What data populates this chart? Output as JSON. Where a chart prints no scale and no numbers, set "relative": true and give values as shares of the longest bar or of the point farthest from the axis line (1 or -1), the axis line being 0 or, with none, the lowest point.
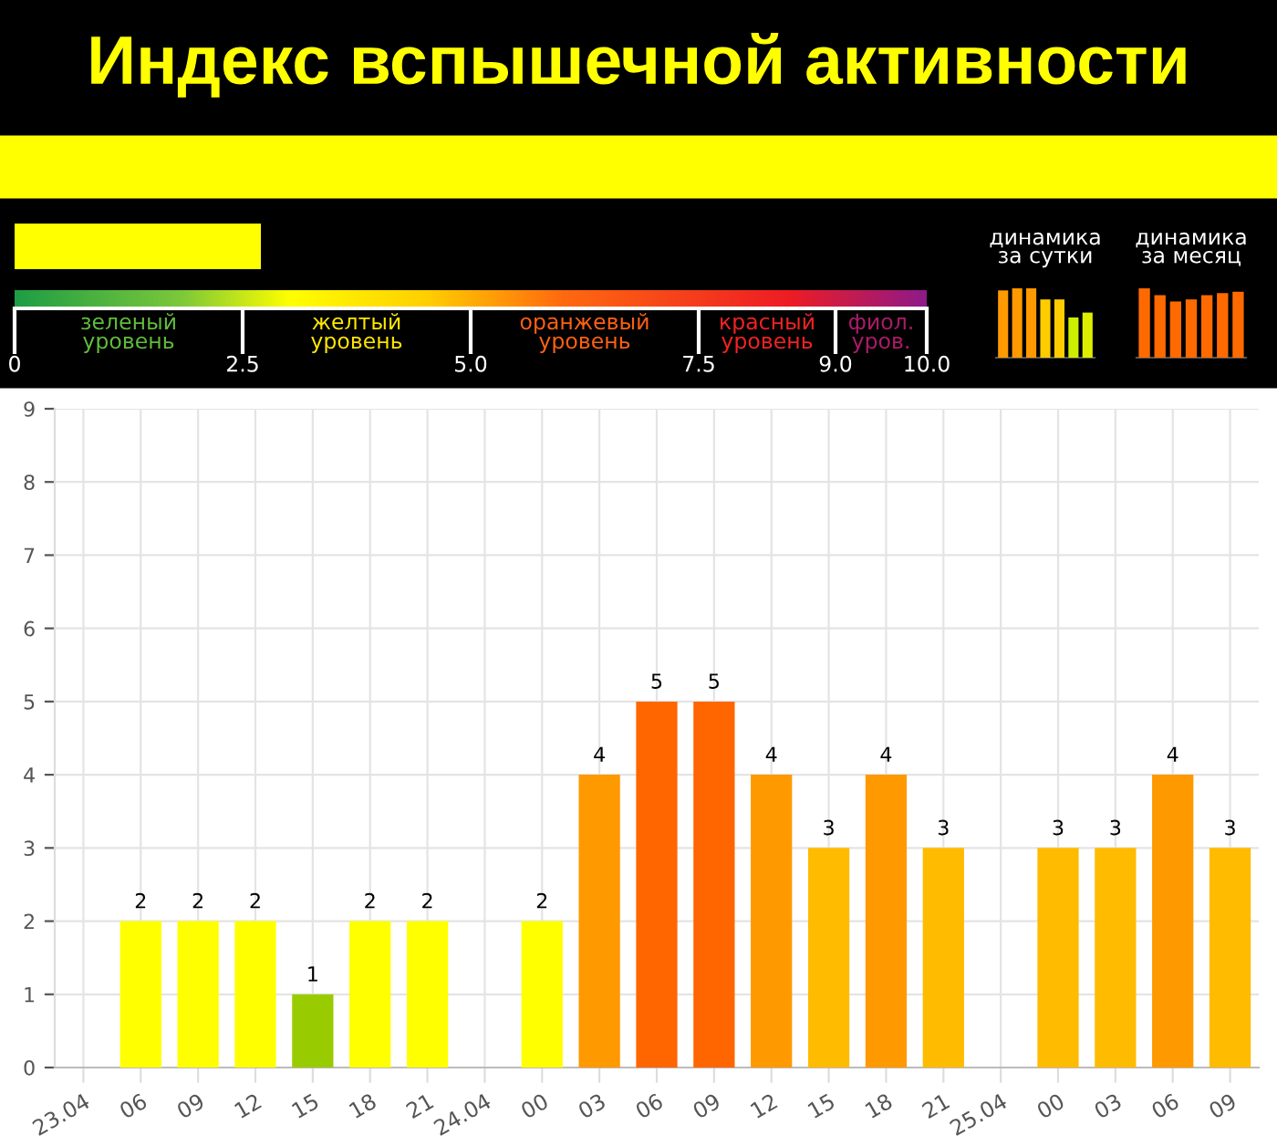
{
  "chart_data": [
    {
      "type": "bar",
      "orientation": "horizontal",
      "title": "Индекс вспышечной активности",
      "categories": [
        null
      ],
      "values": [
        2.7
      ],
      "color": "#ffff00",
      "xlim": [
        0,
        10
      ],
      "xticks": [
        {
          "value": 0,
          "label": "0"
        },
        {
          "value": 2.5,
          "label": "2.5"
        },
        {
          "value": 5.0,
          "label": "5.0"
        },
        {
          "value": 7.5,
          "label": "7.5"
        },
        {
          "value": 9.0,
          "label": "9.0"
        },
        {
          "value": 10.0,
          "label": "10.0"
        }
      ],
      "annotations": [
        "зеленый\nуровень",
        "желтый\nуровень",
        "оранжевый\nуровень",
        "красный\nуровень",
        "фиол.\nуров."
      ]
    },
    {
      "type": "bar",
      "title": "динамика\nза сутки",
      "relative": true,
      "categories": [
        null,
        null,
        null,
        null,
        null,
        null,
        null
      ],
      "values": [
        0.97,
        1,
        1,
        0.84,
        0.84,
        0.58,
        0.65
      ],
      "colors": [
        "#ff9900",
        "#ff9900",
        "#ff9900",
        "#ffcc00",
        "#ffcc00",
        "#ccee00",
        "#ddee00"
      ]
    },
    {
      "type": "bar",
      "title": "динамика\nза месяц",
      "relative": true,
      "categories": [
        null,
        null,
        null,
        null,
        null,
        null,
        null
      ],
      "values": [
        1,
        0.9,
        0.81,
        0.84,
        0.9,
        0.93,
        0.95
      ],
      "colors": [
        "#ff6a00",
        "#ff6a00",
        "#ff6a00",
        "#ff6a00",
        "#ff6a00",
        "#ff6a00",
        "#ff6a00"
      ]
    },
    {
      "type": "bar",
      "categories": [
        "23.04",
        "06",
        "09",
        "12",
        "15",
        "18",
        "21",
        "24.04",
        "00",
        "03",
        "06",
        "09",
        "12",
        "15",
        "18",
        "21",
        "25.04",
        "00",
        "03",
        "06",
        "09"
      ],
      "values": [
        0,
        2,
        2,
        2,
        1,
        2,
        2,
        0,
        2,
        4,
        5,
        5,
        4,
        3,
        4,
        3,
        0,
        3,
        3,
        4,
        3
      ],
      "colors": [
        "#008000",
        "#ffff00",
        "#ffff00",
        "#ffff00",
        "#99cc00",
        "#ffff00",
        "#ffff00",
        "#008000",
        "#ffff00",
        "#ff9900",
        "#ff6600",
        "#ff6600",
        "#ff9900",
        "#ffbb00",
        "#ff9900",
        "#ffbb00",
        "#008000",
        "#ffbb00",
        "#ffbb00",
        "#ff9900",
        "#ffbb00"
      ],
      "value_labels": [
        null,
        "2",
        "2",
        "2",
        "1",
        "2",
        "2",
        null,
        "2",
        "4",
        "5",
        "5",
        "4",
        "3",
        "4",
        "3",
        null,
        "3",
        "3",
        "4",
        "3"
      ],
      "ylim": [
        0,
        9
      ],
      "yticks": [
        0,
        1,
        2,
        3,
        4,
        5,
        6,
        7,
        8,
        9
      ],
      "grid": true
    }
  ]
}
